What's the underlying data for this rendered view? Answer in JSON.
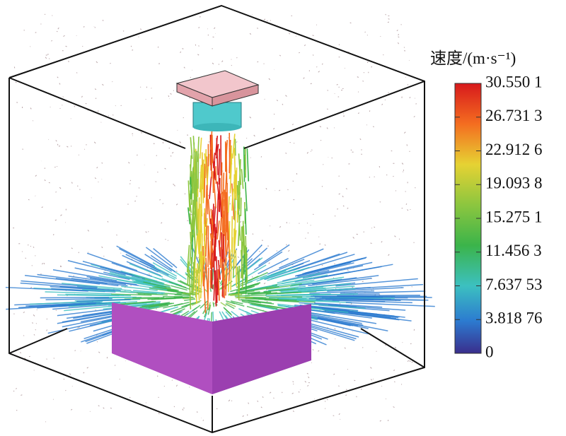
{
  "legend": {
    "title": "速度/(m·s⁻¹)",
    "tick_labels": [
      "30.550 1",
      "26.731 3",
      "22.912 6",
      "19.093 8",
      "15.275 1",
      "11.456 3",
      "7.637 53",
      "3.818 76",
      "0"
    ]
  }
}
